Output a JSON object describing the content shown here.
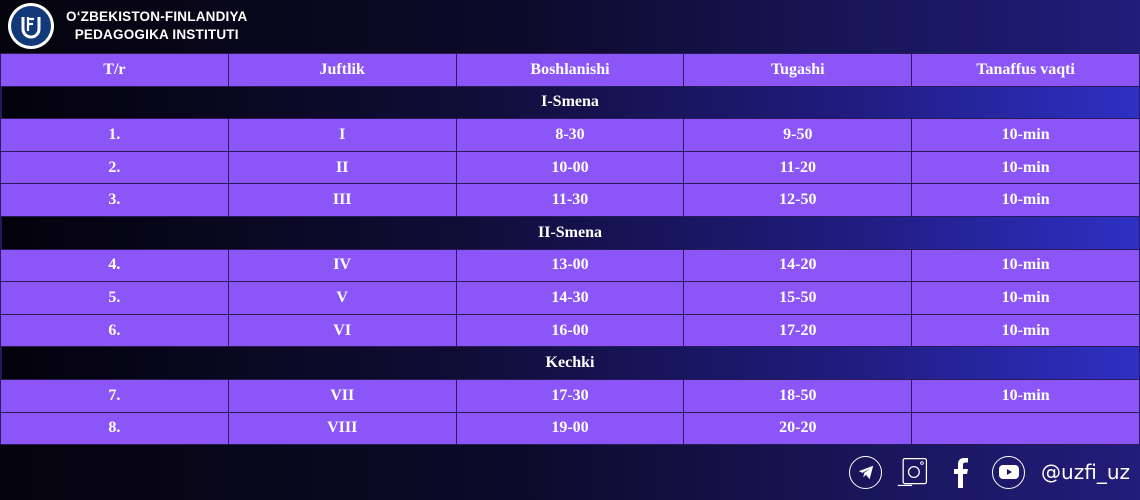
{
  "header": {
    "org_line1": "O‘ZBEKISTON-FINLANDIYA",
    "org_line2": "PEDAGOGIKA INSTITUTI",
    "logo_text": "UzFI"
  },
  "table": {
    "columns": [
      "T/r",
      "Juftlik",
      "Boshlanishi",
      "Tugashi",
      "Tanaffus vaqti"
    ],
    "sections": [
      {
        "title": "I-Smena",
        "rows": [
          [
            "1.",
            "I",
            "8-30",
            "9-50",
            "10-min"
          ],
          [
            "2.",
            "II",
            "10-00",
            "11-20",
            "10-min"
          ],
          [
            "3.",
            "III",
            "11-30",
            "12-50",
            "10-min"
          ]
        ]
      },
      {
        "title": "II-Smena",
        "rows": [
          [
            "4.",
            "IV",
            "13-00",
            "14-20",
            "10-min"
          ],
          [
            "5.",
            "V",
            "14-30",
            "15-50",
            "10-min"
          ],
          [
            "6.",
            "VI",
            "16-00",
            "17-20",
            "10-min"
          ]
        ]
      },
      {
        "title": "Kechki",
        "rows": [
          [
            "7.",
            "VII",
            "17-30",
            "18-50",
            "10-min"
          ],
          [
            "8.",
            "VIII",
            "19-00",
            "20-20",
            ""
          ]
        ]
      }
    ]
  },
  "footer": {
    "icons": [
      "telegram-icon",
      "instagram-icon",
      "facebook-icon",
      "youtube-icon"
    ],
    "handle": "@uzfi_uz"
  },
  "colors": {
    "cell": "#8b55f7",
    "section_accent": "#2e30c4",
    "background": "#05030c"
  }
}
